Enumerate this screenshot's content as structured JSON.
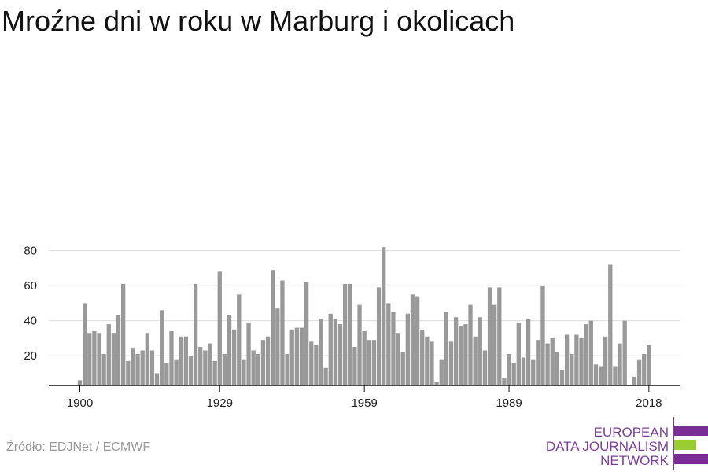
{
  "title": "Mroźne dni w roku w Marburg i okolicach",
  "source": "Źródło: EDJNet / ECMWF",
  "logo": {
    "line1": "EUROPEAN",
    "line2": "DATA JOURNALISM",
    "line3": "NETWORK",
    "colors": {
      "purple": "#7b2d96",
      "green": "#9acd32"
    }
  },
  "chart_data": {
    "type": "bar",
    "title": "Mroźne dni w roku w Marburg i okolicach",
    "xlabel": "",
    "ylabel": "",
    "x_start": 1900,
    "x_end": 2018,
    "x_ticks": [
      1900,
      1929,
      1959,
      1989,
      2018
    ],
    "y_ticks": [
      20,
      40,
      60,
      80
    ],
    "ylim": [
      3,
      84
    ],
    "grid": true,
    "bar_color": "#999999",
    "values": [
      6,
      50,
      33,
      34,
      33,
      21,
      38,
      33,
      43,
      61,
      17,
      24,
      21,
      23,
      33,
      23,
      10,
      46,
      16,
      34,
      18,
      31,
      31,
      20,
      61,
      25,
      23,
      27,
      17,
      68,
      21,
      43,
      35,
      55,
      18,
      39,
      23,
      21,
      29,
      31,
      69,
      47,
      63,
      21,
      35,
      36,
      36,
      62,
      28,
      26,
      41,
      13,
      44,
      41,
      38,
      61,
      61,
      25,
      49,
      34,
      29,
      29,
      59,
      82,
      50,
      45,
      33,
      22,
      44,
      55,
      54,
      35,
      31,
      28,
      5,
      18,
      45,
      28,
      42,
      37,
      38,
      49,
      31,
      42,
      23,
      59,
      49,
      59,
      7,
      21,
      16,
      39,
      19,
      41,
      18,
      29,
      60,
      27,
      30,
      22,
      12,
      32,
      21,
      32,
      30,
      38,
      40,
      15,
      14,
      31,
      72,
      14,
      27,
      40,
      3,
      8,
      18,
      21,
      26
    ]
  }
}
